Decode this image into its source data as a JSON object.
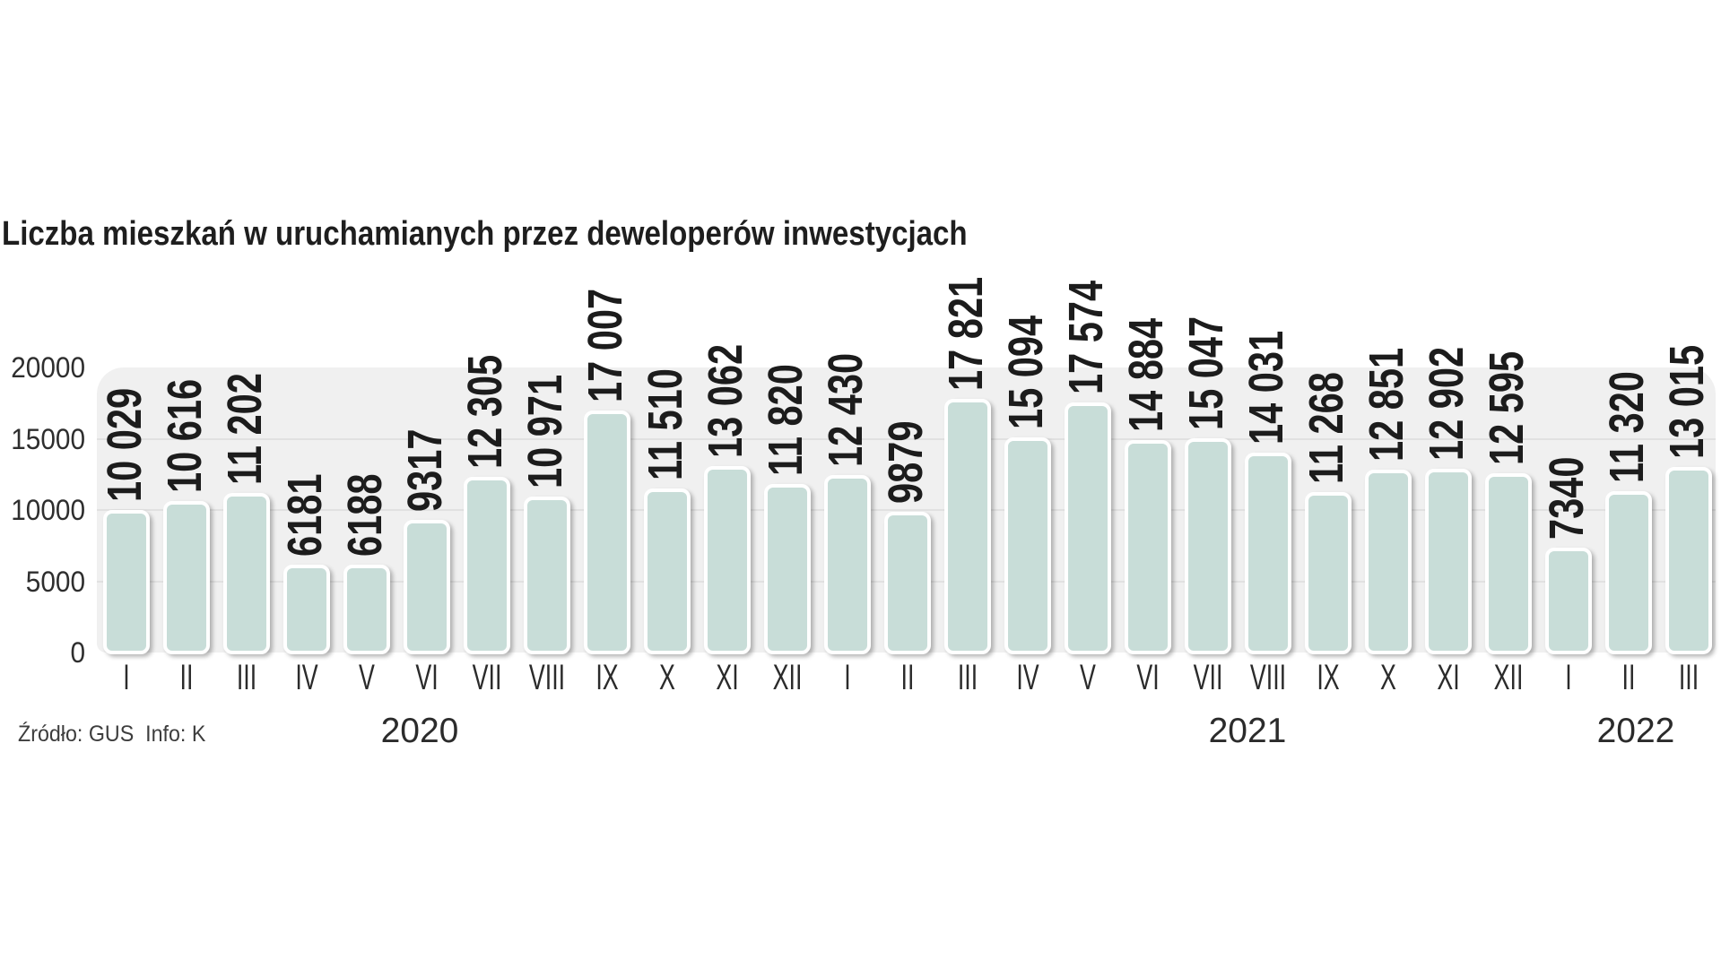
{
  "title": "Liczba mieszkań w uruchamianych przez deweloperów inwestycjach",
  "source": "Źródło: GUS  Info: K",
  "colors": {
    "bar_fill": "#c8ddd8",
    "bar_border": "#ffffff",
    "plot_background": "#f0f0f0",
    "gridline": "#e1e1e1",
    "value_label": "#1c1c1c",
    "text": "#2b2b2b"
  },
  "chart_data": {
    "type": "bar",
    "title": "Liczba mieszkań w uruchamianych przez deweloperów inwestycjach",
    "xlabel": "",
    "ylabel": "",
    "ylim": [
      0,
      20000
    ],
    "yticks": [
      0,
      5000,
      10000,
      15000,
      20000
    ],
    "grid": true,
    "legend": false,
    "categories": [
      "I",
      "II",
      "III",
      "IV",
      "V",
      "VI",
      "VII",
      "VIII",
      "IX",
      "X",
      "XI",
      "XII",
      "I",
      "II",
      "III",
      "IV",
      "V",
      "VI",
      "VII",
      "VIII",
      "IX",
      "X",
      "XI",
      "XII",
      "I",
      "II",
      "III"
    ],
    "values": [
      10029,
      10616,
      11202,
      6181,
      6188,
      9317,
      12305,
      10971,
      17007,
      11510,
      13062,
      11820,
      12430,
      9879,
      17821,
      15094,
      17574,
      14884,
      15047,
      14031,
      11268,
      12851,
      12902,
      12595,
      7340,
      11320,
      13015
    ],
    "value_labels": [
      "10 029",
      "10 616",
      "11 202",
      "6181",
      "6188",
      "9317",
      "12 305",
      "10 971",
      "17 007",
      "11 510",
      "13 062",
      "11 820",
      "12 430",
      "9879",
      "17 821",
      "15 094",
      "17 574",
      "14 884",
      "15 047",
      "14 031",
      "11 268",
      "12 851",
      "12 902",
      "12 595",
      "7340",
      "11 320",
      "13 015"
    ],
    "year_groups": [
      {
        "label": "2020",
        "months": 12
      },
      {
        "label": "2021",
        "months": 12
      },
      {
        "label": "2022",
        "months": 3
      }
    ]
  }
}
